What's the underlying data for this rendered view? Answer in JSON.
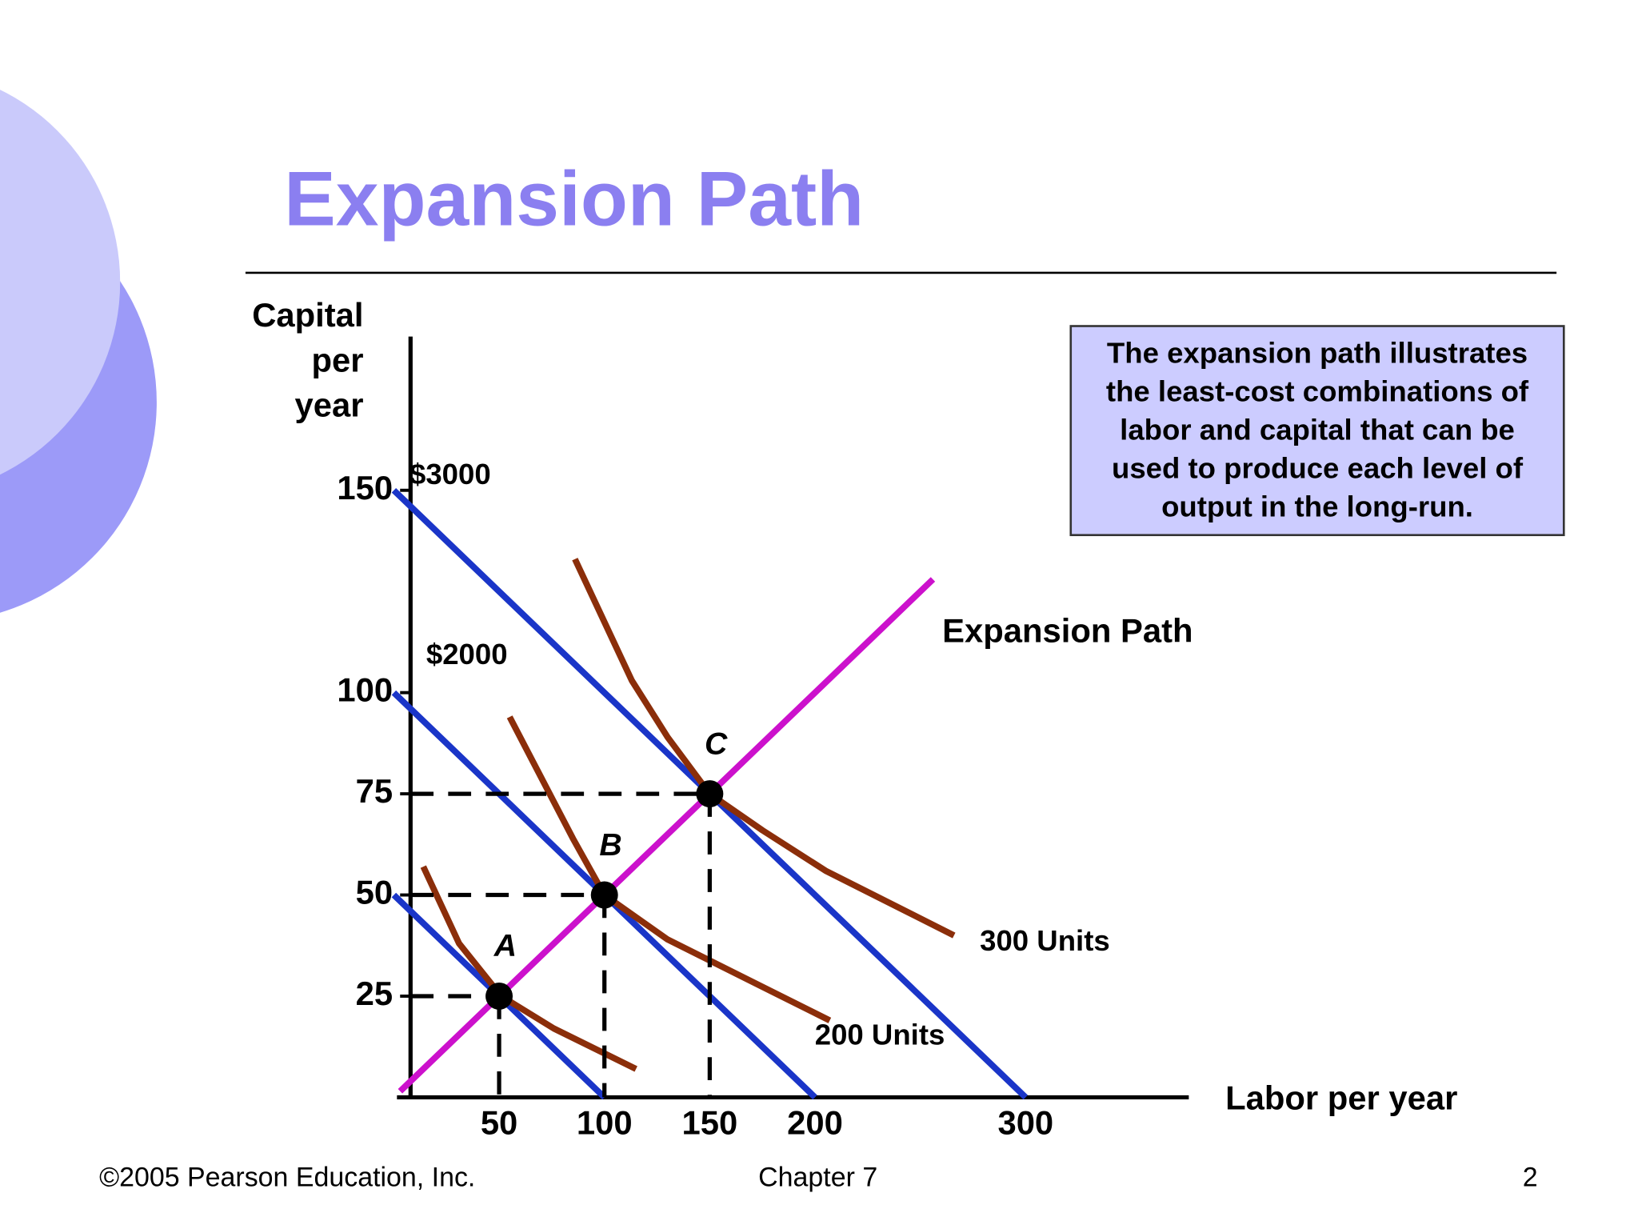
{
  "slide": {
    "title": "Expansion Path",
    "info_box": [
      "The expansion path illustrates",
      "the least-cost combinations of",
      "labor and capital that can be",
      "used to produce each level of",
      "output in the long-run."
    ],
    "footer_left": "©2005 Pearson Education, Inc.",
    "footer_center": "Chapter 7",
    "footer_right": "2"
  },
  "chart_data": {
    "type": "line",
    "y_label": [
      "Capital",
      "per",
      "year"
    ],
    "x_label": "Labor per year",
    "xlim": [
      0,
      377
    ],
    "ylim": [
      0,
      188
    ],
    "xticks": [
      50,
      100,
      150,
      200,
      300
    ],
    "yticks": [
      25,
      50,
      75,
      100,
      150
    ],
    "isocost_lines": [
      {
        "name": "$3000",
        "color": "#1a35c8",
        "x": [
          0,
          300
        ],
        "y": [
          150,
          0
        ]
      },
      {
        "name": "$2000",
        "color": "#1a35c8",
        "x": [
          0,
          200
        ],
        "y": [
          100,
          0
        ]
      },
      {
        "color": "#1a35c8",
        "x": [
          0,
          100
        ],
        "y": [
          50,
          0
        ]
      }
    ],
    "isoquants": [
      {
        "color": "#8b2e0a",
        "x": [
          14,
          31,
          51,
          76,
          115
        ],
        "y": [
          57,
          38,
          25,
          17,
          7
        ]
      },
      {
        "name": "200 Units",
        "color": "#8b2e0a",
        "x": [
          55,
          85,
          100,
          130,
          180,
          207
        ],
        "y": [
          94,
          64,
          50,
          39,
          26,
          19
        ]
      },
      {
        "name": "300 Units",
        "color": "#8b2e0a",
        "x": [
          86,
          113,
          130,
          150,
          175,
          205,
          266
        ],
        "y": [
          133,
          103,
          89,
          75,
          66,
          56,
          40
        ]
      }
    ],
    "expansion_path": {
      "name": "Expansion Path",
      "color": "#cc11cc",
      "x": [
        3,
        256
      ],
      "y": [
        1.5,
        128
      ]
    },
    "points": {
      "labels": [
        "A",
        "B",
        "C"
      ],
      "x": [
        50,
        100,
        150
      ],
      "y": [
        25,
        50,
        75
      ],
      "color": "#000000"
    }
  }
}
